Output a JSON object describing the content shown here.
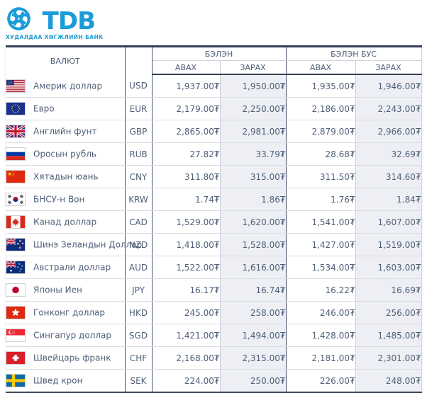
{
  "logo": {
    "text": "TDB",
    "subtext": "ХУДАЛДАА ХӨГЖЛИЙН БАНК",
    "brand_color": "#1b9cd8"
  },
  "table": {
    "headers": {
      "currency": "ВАЛЮТ",
      "cash_group": "БЭЛЭН",
      "noncash_group": "БЭЛЭН БУС",
      "buy": "АВАХ",
      "sell": "ЗАРАХ"
    },
    "rows": [
      {
        "flag": "us",
        "name": "Америк доллар",
        "code": "USD",
        "cash_buy": "1,937.00₮",
        "cash_sell": "1,950.00₮",
        "noncash_buy": "1,935.00₮",
        "noncash_sell": "1,946.00₮"
      },
      {
        "flag": "eu",
        "name": "Евро",
        "code": "EUR",
        "cash_buy": "2,179.00₮",
        "cash_sell": "2,250.00₮",
        "noncash_buy": "2,186.00₮",
        "noncash_sell": "2,243.00₮"
      },
      {
        "flag": "gb",
        "name": "Английн фунт",
        "code": "GBP",
        "cash_buy": "2,865.00₮",
        "cash_sell": "2,981.00₮",
        "noncash_buy": "2,879.00₮",
        "noncash_sell": "2,966.00₮"
      },
      {
        "flag": "ru",
        "name": "Оросын рубль",
        "code": "RUB",
        "cash_buy": "27.82₮",
        "cash_sell": "33.79₮",
        "noncash_buy": "28.68₮",
        "noncash_sell": "32.69₮"
      },
      {
        "flag": "cn",
        "name": "Хятадын юань",
        "code": "CNY",
        "cash_buy": "311.80₮",
        "cash_sell": "315.00₮",
        "noncash_buy": "311.50₮",
        "noncash_sell": "314.60₮"
      },
      {
        "flag": "kr",
        "name": "БНСУ-н Вон",
        "code": "KRW",
        "cash_buy": "1.74₮",
        "cash_sell": "1.86₮",
        "noncash_buy": "1.76₮",
        "noncash_sell": "1.84₮"
      },
      {
        "flag": "ca",
        "name": "Канад доллар",
        "code": "CAD",
        "cash_buy": "1,529.00₮",
        "cash_sell": "1,620.00₮",
        "noncash_buy": "1,541.00₮",
        "noncash_sell": "1,607.00₮"
      },
      {
        "flag": "nz",
        "name": "Шинэ Зеландын Доллар",
        "code": "NZD",
        "cash_buy": "1,418.00₮",
        "cash_sell": "1,528.00₮",
        "noncash_buy": "1,427.00₮",
        "noncash_sell": "1,519.00₮"
      },
      {
        "flag": "au",
        "name": "Австрали доллар",
        "code": "AUD",
        "cash_buy": "1,522.00₮",
        "cash_sell": "1,616.00₮",
        "noncash_buy": "1,534.00₮",
        "noncash_sell": "1,603.00₮"
      },
      {
        "flag": "jp",
        "name": "Японы Иен",
        "code": "JPY",
        "cash_buy": "16.17₮",
        "cash_sell": "16.74₮",
        "noncash_buy": "16.22₮",
        "noncash_sell": "16.69₮"
      },
      {
        "flag": "hk",
        "name": "Гонконг доллар",
        "code": "HKD",
        "cash_buy": "245.00₮",
        "cash_sell": "258.00₮",
        "noncash_buy": "246.00₮",
        "noncash_sell": "256.00₮"
      },
      {
        "flag": "sg",
        "name": "Сингапур доллар",
        "code": "SGD",
        "cash_buy": "1,421.00₮",
        "cash_sell": "1,494.00₮",
        "noncash_buy": "1,428.00₮",
        "noncash_sell": "1,485.00₮"
      },
      {
        "flag": "ch",
        "name": "Швейцарь франк",
        "code": "CHF",
        "cash_buy": "2,168.00₮",
        "cash_sell": "2,315.00₮",
        "noncash_buy": "2,181.00₮",
        "noncash_sell": "2,301.00₮"
      },
      {
        "flag": "se",
        "name": "Швед крон",
        "code": "SEK",
        "cash_buy": "224.00₮",
        "cash_sell": "250.00₮",
        "noncash_buy": "226.00₮",
        "noncash_sell": "248.00₮"
      }
    ]
  },
  "colors": {
    "accent": "#1b9cd8",
    "dark_border": "#333f52",
    "sell_column_bg": "#edeff4",
    "text": "#4e5f78"
  }
}
